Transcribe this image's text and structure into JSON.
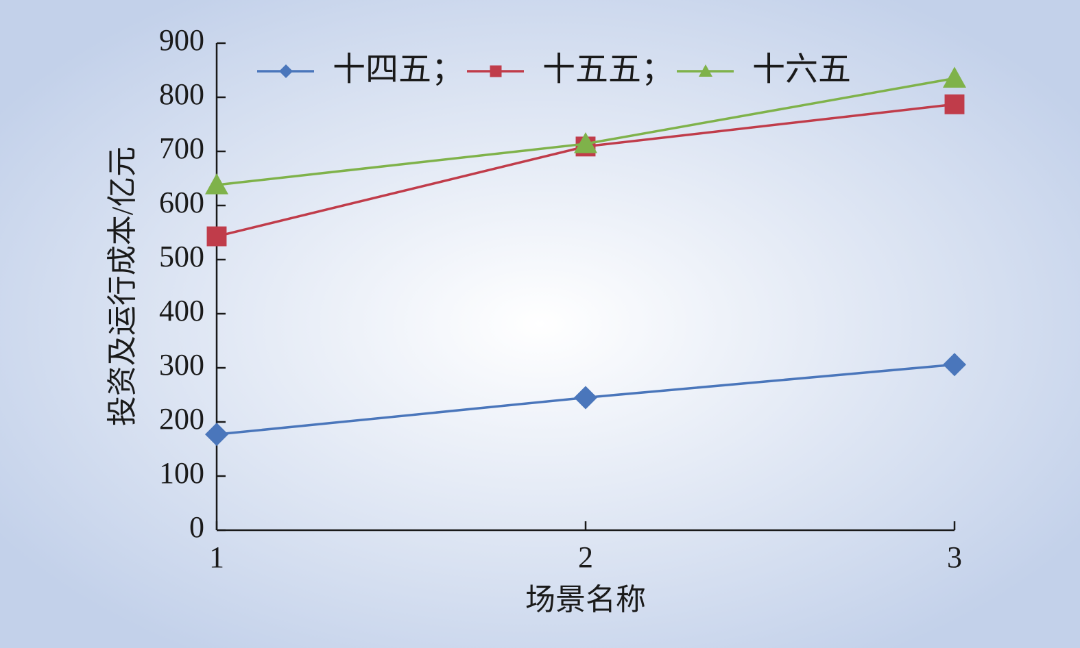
{
  "chart_data": {
    "type": "line",
    "x_label": "场景名称",
    "y_label": "投资及运行成本/亿元",
    "x": [
      1,
      2,
      3
    ],
    "xlim": [
      1,
      3
    ],
    "xticks": [
      1,
      2,
      3
    ],
    "ylim": [
      0,
      900
    ],
    "yticks": [
      0,
      100,
      200,
      300,
      400,
      500,
      600,
      700,
      800,
      900
    ],
    "series": [
      {
        "name": "十四五；",
        "color": "#4a76bb",
        "marker": "diamond",
        "values": [
          177,
          245,
          306
        ]
      },
      {
        "name": "十五五；",
        "color": "#c03c4a",
        "marker": "square",
        "values": [
          543,
          709,
          787
        ]
      },
      {
        "name": "十六五",
        "color": "#7fb24a",
        "marker": "triangle",
        "values": [
          638,
          714,
          835
        ]
      }
    ]
  }
}
